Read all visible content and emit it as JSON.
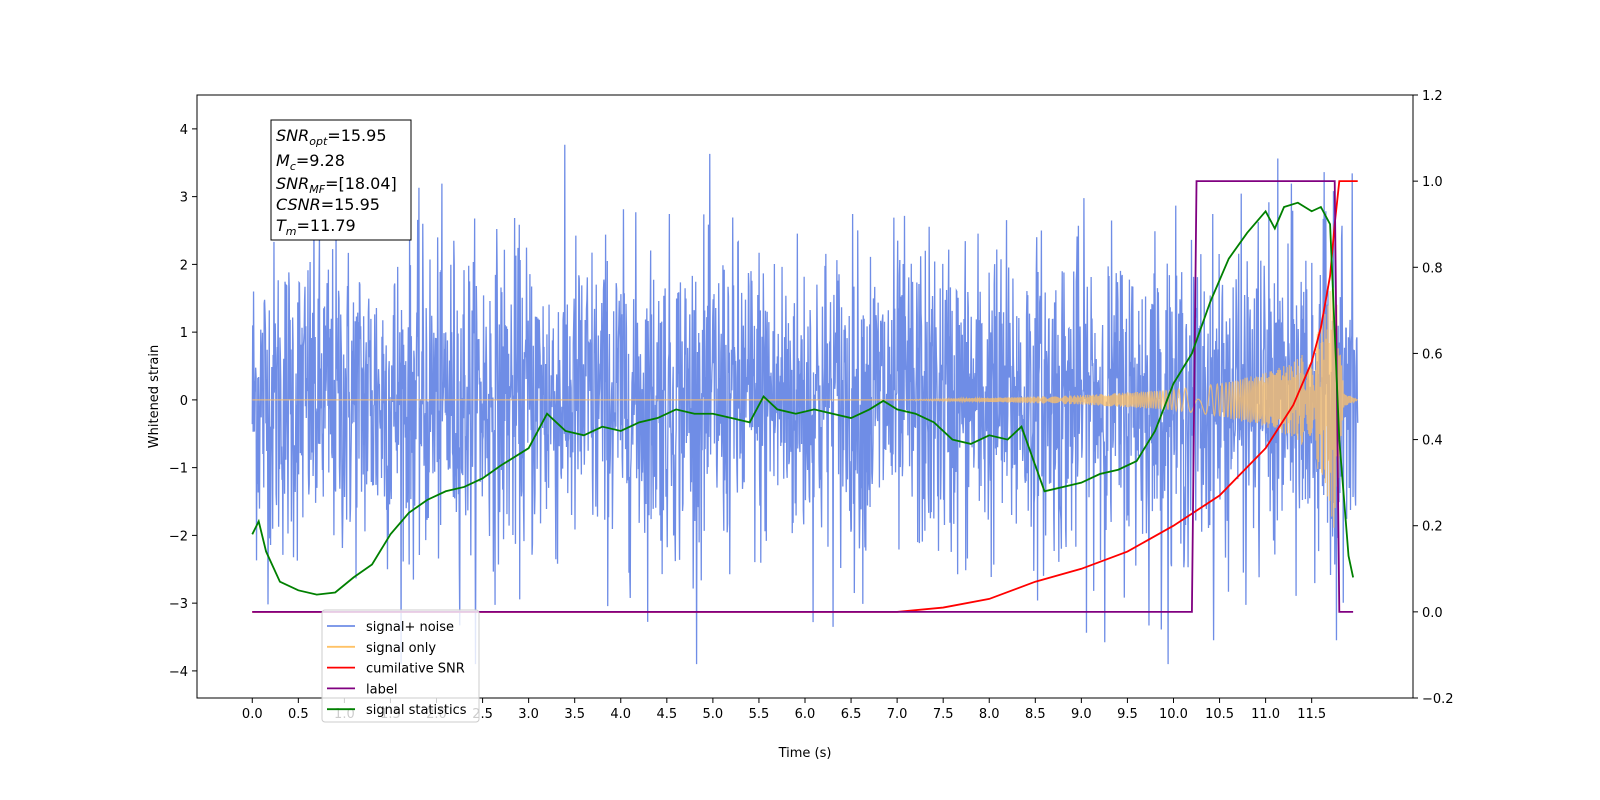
{
  "chart_data": {
    "type": "line",
    "xlabel": "Time (s)",
    "ylabel": "Whitened strain",
    "xlim": [
      -0.6,
      12.6
    ],
    "ylim": [
      -4.4,
      4.5
    ],
    "ylim_right": [
      -0.2,
      1.2
    ],
    "x_ticks": [
      "0.0",
      "0.5",
      "1.0",
      "1.5",
      "2.0",
      "2.5",
      "3.0",
      "3.5",
      "4.0",
      "4.5",
      "5.0",
      "5.5",
      "6.0",
      "6.5",
      "7.0",
      "7.5",
      "8.0",
      "8.5",
      "9.0",
      "9.5",
      "10.0",
      "10.5",
      "11.0",
      "11.5"
    ],
    "y_ticks_left": [
      "4",
      "3",
      "2",
      "1",
      "0",
      "−1",
      "−2",
      "−3",
      "−4"
    ],
    "y_ticks_right": [
      "1.2",
      "1.0",
      "0.8",
      "0.6",
      "0.4",
      "0.2",
      "0.0",
      "−0.2"
    ],
    "info_box": {
      "snr_opt": {
        "base": "SNR",
        "sub": "opt",
        "value": "=15.95"
      },
      "mc": {
        "base": "M",
        "sub": "c",
        "value": "=9.28"
      },
      "snr_mf": {
        "base": "SNR",
        "sub": "MF",
        "value": "=[18.04]"
      },
      "csnr": {
        "base": "CSNR",
        "sub": "",
        "value": "=15.95"
      },
      "tm": {
        "base": "T",
        "sub": "m",
        "value": "=11.79"
      }
    },
    "legend_position": "lower-left",
    "legend": [
      {
        "label": "signal+ noise",
        "color": "#6f8de6"
      },
      {
        "label": "signal only",
        "color": "#ffc266"
      },
      {
        "label": "cumilative SNR",
        "color": "#ff0000"
      },
      {
        "label": "label",
        "color": "#800080"
      },
      {
        "label": "signal statistics",
        "color": "#008000"
      }
    ],
    "series": [
      {
        "name": "signal+ noise",
        "axis": "left",
        "color": "#6f8de6",
        "description_range": [
          -3.9,
          4.1
        ],
        "x_range": [
          0.0,
          12.0
        ],
        "noise_sigma": 1.0
      },
      {
        "name": "signal only",
        "axis": "left",
        "color": "#ffc266",
        "x_range": [
          0.0,
          12.0
        ],
        "envelope": {
          "x": [
            0.0,
            7.0,
            8.0,
            9.0,
            10.0,
            10.5,
            11.0,
            11.3,
            11.5,
            11.65,
            11.75,
            11.8,
            11.85,
            12.0
          ],
          "amp": [
            0.0,
            0.0,
            0.03,
            0.07,
            0.15,
            0.24,
            0.4,
            0.55,
            0.8,
            1.3,
            2.0,
            1.0,
            0.1,
            0.0
          ]
        }
      },
      {
        "name": "cumilative SNR",
        "axis": "right",
        "color": "#ff0000",
        "x": [
          0.0,
          7.0,
          7.5,
          8.0,
          8.5,
          9.0,
          9.5,
          10.0,
          10.5,
          11.0,
          11.3,
          11.5,
          11.6,
          11.7,
          11.75,
          11.8,
          11.85,
          12.0
        ],
        "y": [
          0.0,
          0.0,
          0.01,
          0.03,
          0.07,
          0.1,
          0.14,
          0.2,
          0.27,
          0.38,
          0.48,
          0.58,
          0.66,
          0.78,
          0.9,
          1.0,
          1.0,
          1.0
        ]
      },
      {
        "name": "label",
        "axis": "right",
        "color": "#800080",
        "x": [
          0.0,
          10.2,
          10.2,
          10.25,
          11.75,
          11.8,
          11.95
        ],
        "y": [
          0.0,
          0.0,
          0.0,
          1.0,
          1.0,
          0.0,
          0.0
        ]
      },
      {
        "name": "signal statistics",
        "axis": "right",
        "color": "#008000",
        "x": [
          0.0,
          0.07,
          0.15,
          0.3,
          0.5,
          0.7,
          0.9,
          1.1,
          1.3,
          1.5,
          1.7,
          1.9,
          2.1,
          2.3,
          2.5,
          2.7,
          3.0,
          3.2,
          3.4,
          3.6,
          3.8,
          4.0,
          4.2,
          4.4,
          4.6,
          4.8,
          5.0,
          5.2,
          5.4,
          5.55,
          5.7,
          5.9,
          6.1,
          6.3,
          6.5,
          6.7,
          6.85,
          7.0,
          7.2,
          7.4,
          7.6,
          7.8,
          8.0,
          8.2,
          8.35,
          8.6,
          8.8,
          9.0,
          9.2,
          9.4,
          9.6,
          9.8,
          10.0,
          10.2,
          10.4,
          10.6,
          10.8,
          11.0,
          11.1,
          11.2,
          11.35,
          11.5,
          11.6,
          11.7,
          11.8,
          11.9,
          11.95
        ],
        "y": [
          0.18,
          0.21,
          0.14,
          0.07,
          0.05,
          0.04,
          0.045,
          0.08,
          0.11,
          0.18,
          0.23,
          0.26,
          0.28,
          0.29,
          0.31,
          0.34,
          0.38,
          0.46,
          0.42,
          0.41,
          0.43,
          0.42,
          0.44,
          0.45,
          0.47,
          0.46,
          0.46,
          0.45,
          0.44,
          0.5,
          0.47,
          0.46,
          0.47,
          0.46,
          0.45,
          0.47,
          0.49,
          0.47,
          0.46,
          0.44,
          0.4,
          0.39,
          0.41,
          0.4,
          0.43,
          0.28,
          0.29,
          0.3,
          0.32,
          0.33,
          0.35,
          0.42,
          0.53,
          0.6,
          0.72,
          0.82,
          0.88,
          0.93,
          0.89,
          0.94,
          0.95,
          0.93,
          0.94,
          0.9,
          0.4,
          0.13,
          0.08
        ]
      }
    ]
  }
}
